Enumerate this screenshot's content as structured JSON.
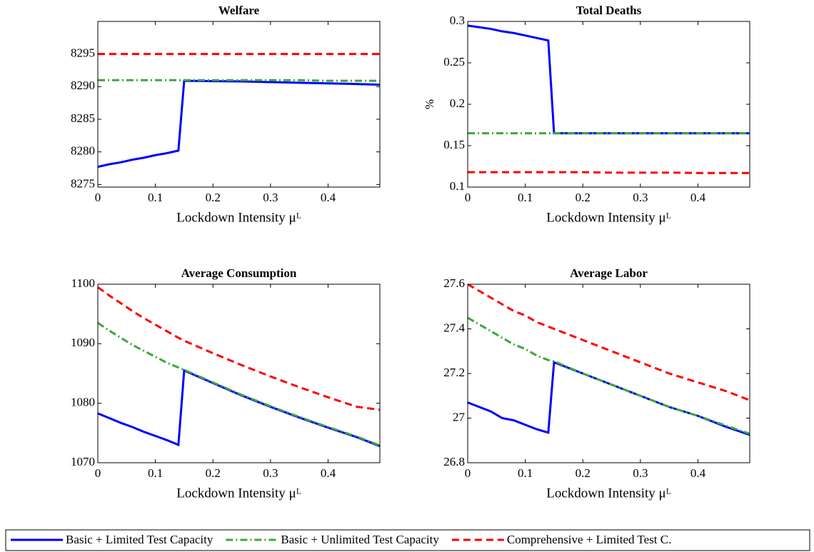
{
  "chart_data": [
    {
      "type": "line",
      "title": "Welfare",
      "xlabel": "Lockdown Intensity μᴸ",
      "x": [
        0,
        0.02,
        0.04,
        0.06,
        0.08,
        0.1,
        0.12,
        0.14,
        0.15,
        0.2,
        0.25,
        0.3,
        0.35,
        0.4,
        0.45,
        0.49
      ],
      "xlim": [
        0,
        0.49
      ],
      "xticks": [
        0,
        0.1,
        0.2,
        0.3,
        0.4
      ],
      "ylim": [
        8274.6,
        8300
      ],
      "yticks": [
        8275,
        8280,
        8285,
        8290,
        8295
      ],
      "legend": "bottom-outside",
      "series": [
        {
          "name": "Basic + Limited Test Capacity",
          "color": "#0000ff",
          "style": "solid",
          "values": [
            8277.7,
            8278.1,
            8278.4,
            8278.8,
            8279.1,
            8279.5,
            8279.8,
            8280.2,
            8290.9,
            8290.85,
            8290.8,
            8290.7,
            8290.6,
            8290.5,
            8290.4,
            8290.3
          ]
        },
        {
          "name": "Basic + Unlimited Test Capacity",
          "color": "#3ca83c",
          "style": "dashdot",
          "values": [
            8291,
            8291,
            8291,
            8291,
            8291,
            8291,
            8291,
            8291,
            8291,
            8291,
            8291,
            8291,
            8291,
            8290.9,
            8290.9,
            8290.9
          ]
        },
        {
          "name": "Comprehensive + Limited Test C.",
          "color": "#ff0000",
          "style": "dashed",
          "values": [
            8295,
            8295,
            8295,
            8295,
            8295,
            8295,
            8295,
            8295,
            8295,
            8295,
            8295,
            8295,
            8295,
            8295,
            8295,
            8295
          ]
        }
      ]
    },
    {
      "type": "line",
      "title": "Total Deaths",
      "xlabel": "Lockdown Intensity μᴸ",
      "ylabel": "%",
      "x": [
        0,
        0.02,
        0.04,
        0.06,
        0.08,
        0.1,
        0.12,
        0.14,
        0.15,
        0.2,
        0.25,
        0.3,
        0.35,
        0.4,
        0.45,
        0.49
      ],
      "xlim": [
        0,
        0.49
      ],
      "xticks": [
        0,
        0.1,
        0.2,
        0.3,
        0.4
      ],
      "ylim": [
        0.1,
        0.3
      ],
      "yticks": [
        0.1,
        0.15,
        0.2,
        0.25,
        0.3
      ],
      "series": [
        {
          "name": "Basic + Limited Test Capacity",
          "color": "#0000ff",
          "style": "solid",
          "values": [
            0.295,
            0.293,
            0.291,
            0.288,
            0.286,
            0.283,
            0.28,
            0.277,
            0.165,
            0.165,
            0.165,
            0.165,
            0.165,
            0.165,
            0.165,
            0.165
          ]
        },
        {
          "name": "Basic + Unlimited Test Capacity",
          "color": "#3ca83c",
          "style": "dashdot",
          "values": [
            0.165,
            0.165,
            0.165,
            0.165,
            0.165,
            0.165,
            0.165,
            0.165,
            0.165,
            0.165,
            0.165,
            0.165,
            0.165,
            0.165,
            0.165,
            0.165
          ]
        },
        {
          "name": "Comprehensive + Limited Test C.",
          "color": "#ff0000",
          "style": "dashed",
          "values": [
            0.118,
            0.118,
            0.118,
            0.118,
            0.118,
            0.118,
            0.118,
            0.118,
            0.118,
            0.118,
            0.1175,
            0.1175,
            0.1175,
            0.117,
            0.117,
            0.117
          ]
        }
      ]
    },
    {
      "type": "line",
      "title": "Average Consumption",
      "xlabel": "Lockdown Intensity μᴸ",
      "x": [
        0,
        0.02,
        0.04,
        0.06,
        0.08,
        0.1,
        0.12,
        0.14,
        0.15,
        0.2,
        0.25,
        0.3,
        0.35,
        0.4,
        0.45,
        0.49
      ],
      "xlim": [
        0,
        0.49
      ],
      "xticks": [
        0,
        0.1,
        0.2,
        0.3,
        0.4
      ],
      "ylim": [
        1070,
        1100
      ],
      "yticks": [
        1070,
        1080,
        1090,
        1100
      ],
      "series": [
        {
          "name": "Basic + Limited Test Capacity",
          "color": "#0000ff",
          "style": "solid",
          "values": [
            1078.3,
            1077.5,
            1076.7,
            1076,
            1075.2,
            1074.5,
            1073.8,
            1073,
            1085.5,
            1083.4,
            1081.3,
            1079.4,
            1077.6,
            1075.9,
            1074.3,
            1072.8
          ]
        },
        {
          "name": "Basic + Unlimited Test Capacity",
          "color": "#3ca83c",
          "style": "dashdot",
          "values": [
            1093.5,
            1092.2,
            1091,
            1089.8,
            1088.8,
            1087.8,
            1086.8,
            1086,
            1085.6,
            1083.5,
            1081.4,
            1079.5,
            1077.7,
            1076,
            1074.4,
            1072.9
          ]
        },
        {
          "name": "Comprehensive + Limited Test C.",
          "color": "#ff0000",
          "style": "dashed",
          "values": [
            1099.5,
            1098.1,
            1096.8,
            1095.5,
            1094.3,
            1093.2,
            1092.1,
            1091,
            1090.5,
            1088.4,
            1086.4,
            1084.5,
            1082.7,
            1081,
            1079.4,
            1078.9
          ]
        }
      ]
    },
    {
      "type": "line",
      "title": "Average Labor",
      "xlabel": "Lockdown Intensity μᴸ",
      "x": [
        0,
        0.02,
        0.04,
        0.06,
        0.08,
        0.1,
        0.12,
        0.14,
        0.15,
        0.2,
        0.25,
        0.3,
        0.35,
        0.4,
        0.45,
        0.49
      ],
      "xlim": [
        0,
        0.49
      ],
      "xticks": [
        0,
        0.1,
        0.2,
        0.3,
        0.4
      ],
      "ylim": [
        26.8,
        27.6
      ],
      "yticks": [
        26.8,
        27,
        27.2,
        27.4,
        27.6
      ],
      "series": [
        {
          "name": "Basic + Limited Test Capacity",
          "color": "#0000ff",
          "style": "solid",
          "values": [
            27.07,
            27.05,
            27.03,
            27.0,
            26.99,
            26.97,
            26.95,
            26.935,
            27.25,
            27.2,
            27.15,
            27.1,
            27.05,
            27.01,
            26.96,
            26.925
          ]
        },
        {
          "name": "Basic + Unlimited Test Capacity",
          "color": "#3ca83c",
          "style": "dashdot",
          "values": [
            27.45,
            27.42,
            27.39,
            27.36,
            27.33,
            27.31,
            27.28,
            27.26,
            27.255,
            27.2,
            27.15,
            27.1,
            27.05,
            27.01,
            26.965,
            26.93
          ]
        },
        {
          "name": "Comprehensive + Limited Test C.",
          "color": "#ff0000",
          "style": "dashed",
          "values": [
            27.6,
            27.57,
            27.54,
            27.51,
            27.48,
            27.46,
            27.43,
            27.41,
            27.4,
            27.35,
            27.3,
            27.25,
            27.2,
            27.16,
            27.12,
            27.08
          ]
        }
      ]
    }
  ]
}
